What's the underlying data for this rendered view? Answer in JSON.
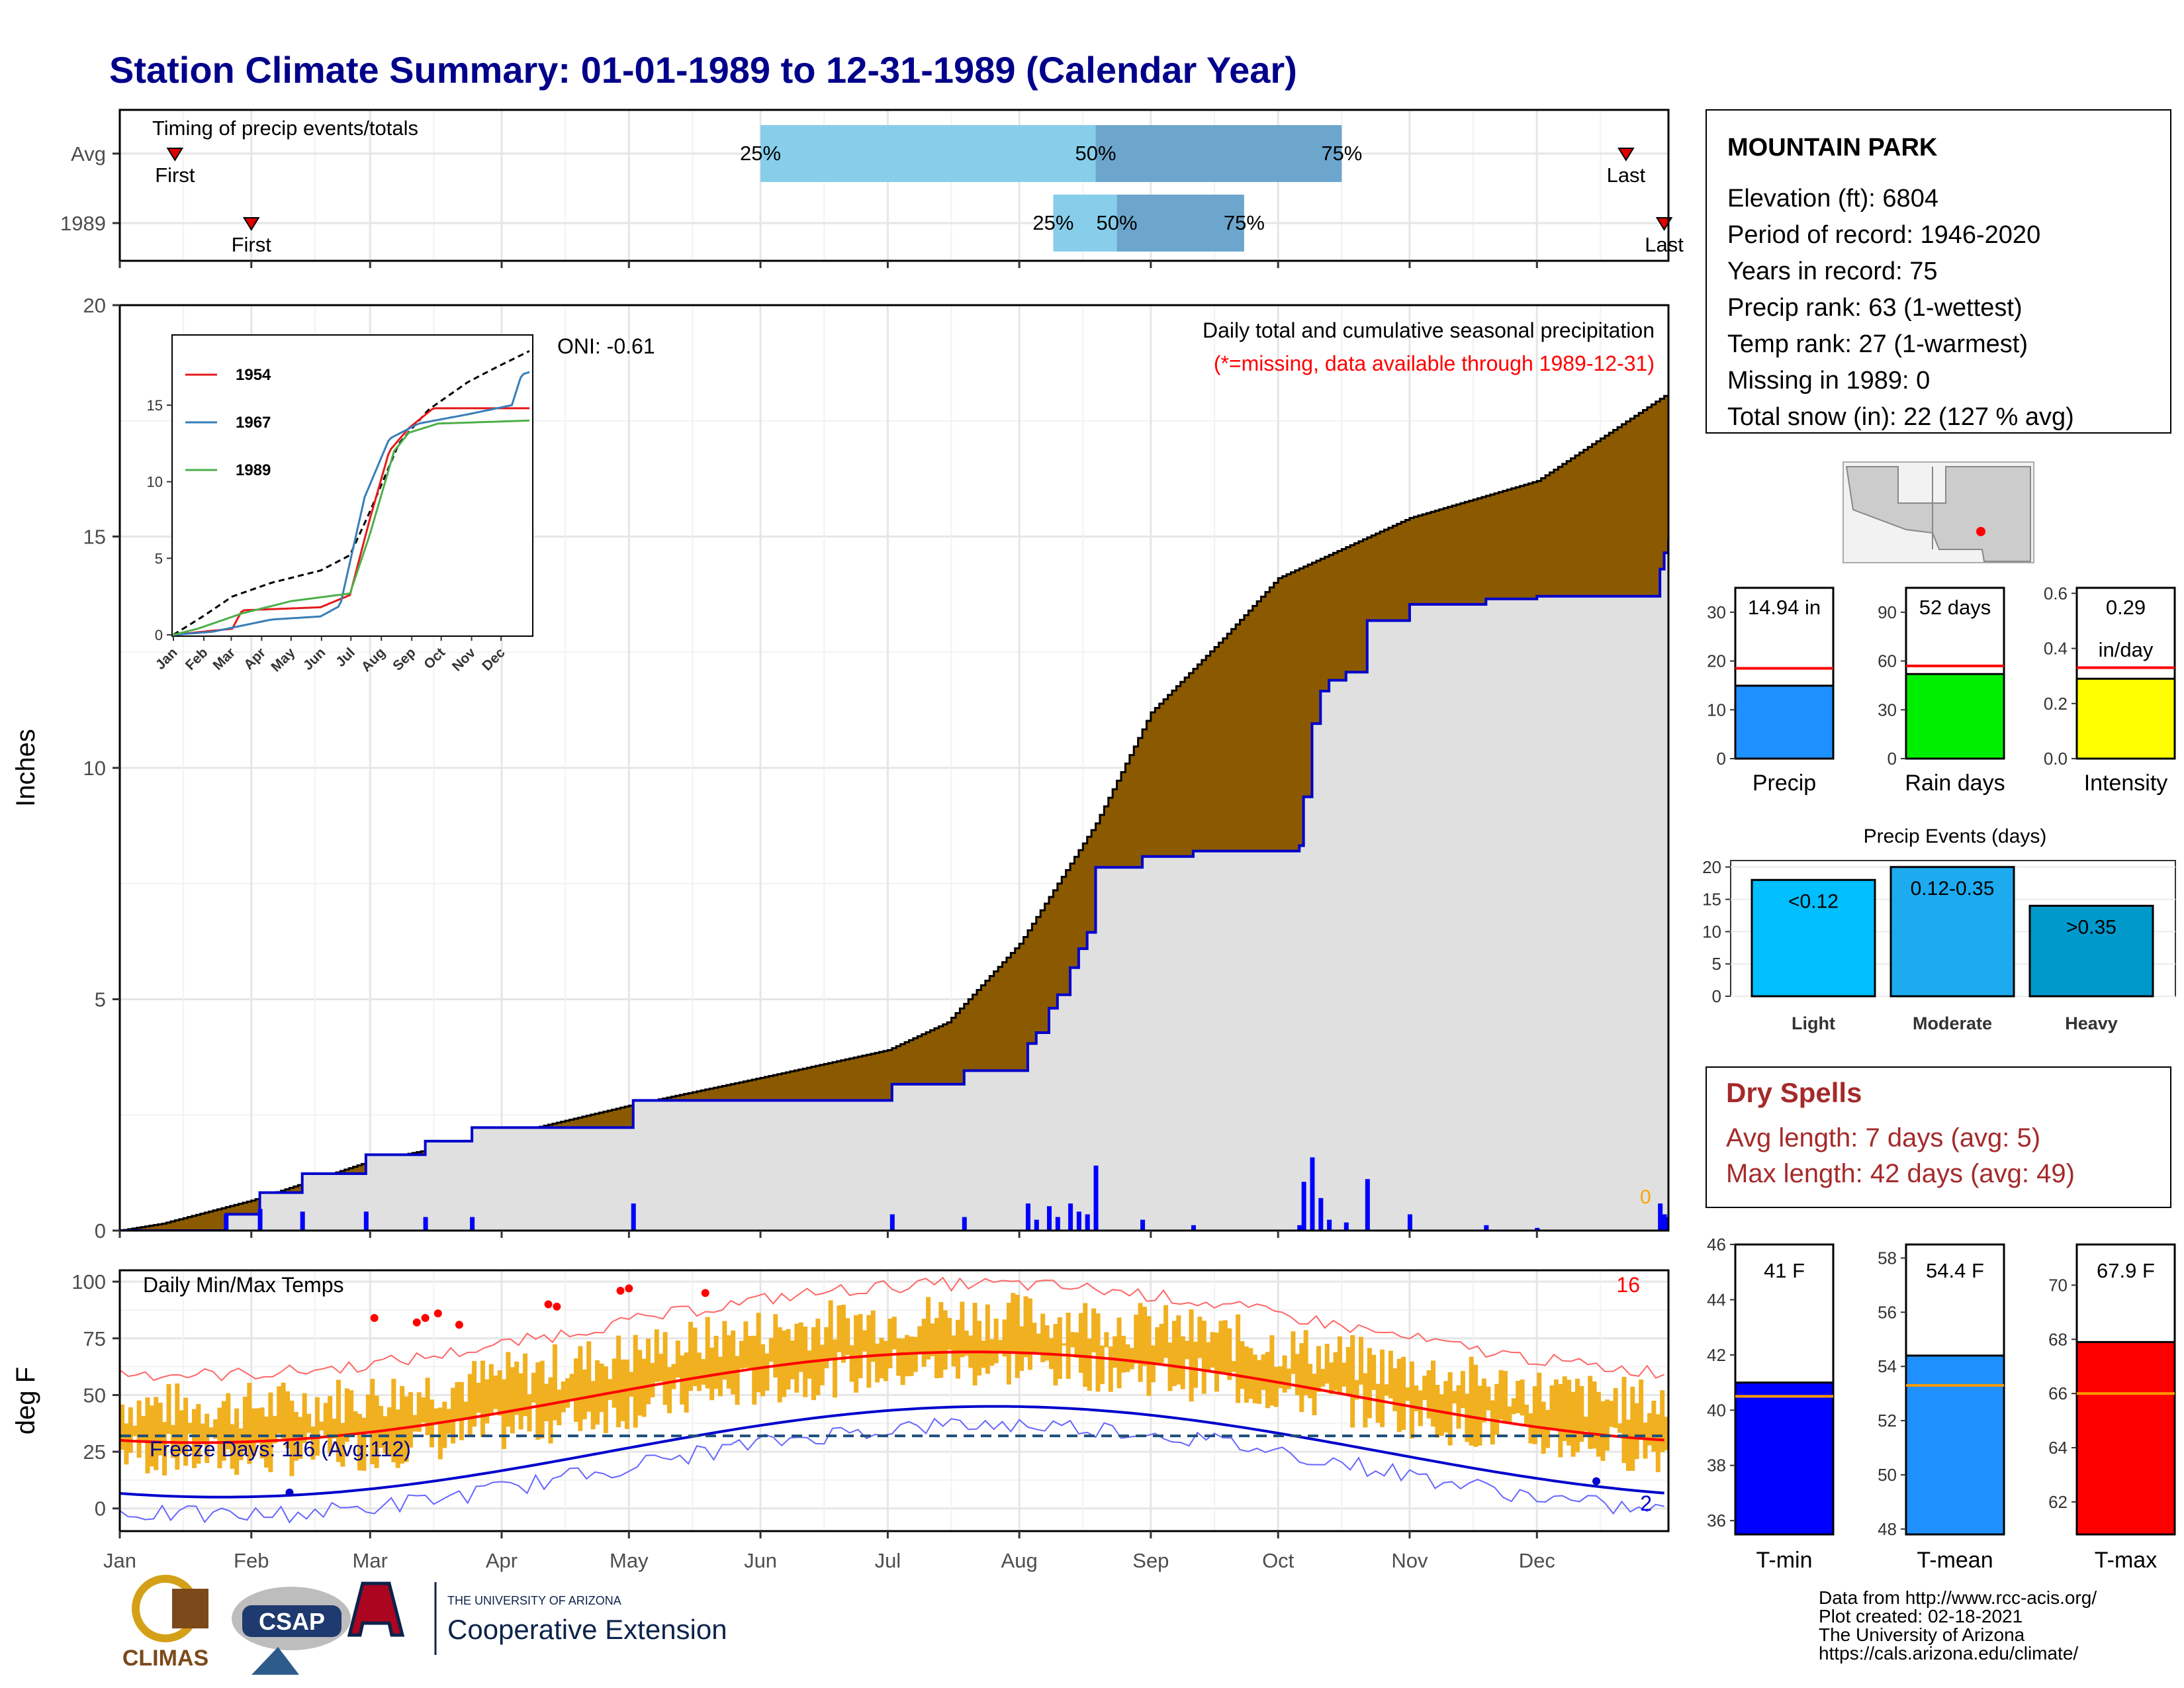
{
  "title": "Station Climate Summary: 01-01-1989 to 12-31-1989 (Calendar Year)",
  "months": [
    "Jan",
    "Feb",
    "Mar",
    "Apr",
    "May",
    "Jun",
    "Jul",
    "Aug",
    "Sep",
    "Oct",
    "Nov",
    "Dec"
  ],
  "timing": {
    "title": "Timing of precip events/totals",
    "rows": [
      {
        "label": "Avg",
        "first_day": 13,
        "last_day": 355,
        "p25": 151,
        "p50": 230,
        "p75": 288,
        "first_label": "First",
        "last_label": "Last",
        "p25_label": "25%",
        "p50_label": "50%",
        "p75_label": "75%"
      },
      {
        "label": "1989",
        "first_day": 31,
        "last_day": 364,
        "p25": 220,
        "p50": 235,
        "p75": 265,
        "first_label": "First",
        "last_label": "Last",
        "p25_label": "25%",
        "p50_label": "50%",
        "p75_label": "75%"
      }
    ]
  },
  "station": {
    "name": "MOUNTAIN PARK",
    "lines": [
      "Elevation (ft): 6804",
      "Period of record: 1946-2020",
      "Years in record: 75",
      "Precip rank: 63 (1-wettest)",
      "Temp rank: 27 (1-warmest)",
      "Missing in 1989: 0",
      "Total snow (in): 22 (127 % avg)"
    ]
  },
  "precip_panel": {
    "ylabel": "Inches",
    "yticks": [
      0,
      5,
      10,
      15,
      20
    ],
    "ylim": [
      0,
      20
    ],
    "title": "Daily total and cumulative seasonal precipitation",
    "missing_note": "(*=missing, data available through 1989-12-31)",
    "oni": "ONI: -0.61",
    "zero_count": "0",
    "colors": {
      "avg_fill": "#8b5a00",
      "obs_fill": "#e0e0e0",
      "obs_line": "#0000cc",
      "bars": "#0000ff"
    }
  },
  "inset": {
    "yticks": [
      0,
      5,
      10,
      15
    ],
    "xlabels": [
      "Jan",
      "Feb",
      "Mar",
      "Apr",
      "May",
      "Jun",
      "Jul",
      "Aug",
      "Sep",
      "Oct",
      "Nov",
      "Dec"
    ],
    "legend": [
      {
        "name": "1954",
        "color": "#e41a1c"
      },
      {
        "name": "1967",
        "color": "#377eb8"
      },
      {
        "name": "1989",
        "color": "#4daf4a"
      }
    ]
  },
  "temp_panel": {
    "ylabel": "deg F",
    "yticks": [
      0,
      25,
      50,
      75,
      100
    ],
    "ylim": [
      -10,
      105
    ],
    "title": "Daily Min/Max Temps",
    "freeze": "Freeze Days: 116 (Avg:112)",
    "hot_count": "16",
    "cold_count": "2",
    "freeze_line": 32
  },
  "bars_top": [
    {
      "label": "Precip",
      "value": 14.94,
      "value_text": "14.94 in",
      "avg": 18.5,
      "ylim": [
        0,
        35
      ],
      "yticks": [
        0,
        10,
        20,
        30
      ],
      "color": "#1e90ff"
    },
    {
      "label": "Rain days",
      "value": 52,
      "value_text": "52 days",
      "avg": 57,
      "ylim": [
        0,
        105
      ],
      "yticks": [
        0,
        30,
        60,
        90
      ],
      "color": "#00ee00"
    },
    {
      "label": "Intensity",
      "value": 0.29,
      "value_text": "0.29",
      "value_text2": "in/day",
      "avg": 0.33,
      "ylim": [
        0,
        0.62
      ],
      "yticks": [
        "0.0",
        "0.2",
        "0.4",
        "0.6"
      ],
      "color": "#ffff00"
    }
  ],
  "events": {
    "title": "Precip Events (days)",
    "yticks": [
      0,
      5,
      10,
      15,
      20
    ],
    "bars": [
      {
        "label": "Light",
        "value": 18,
        "text": "<0.12",
        "color": "#00bfff"
      },
      {
        "label": "Moderate",
        "value": 20,
        "text": "0.12-0.35",
        "color": "#1eaaef"
      },
      {
        "label": "Heavy",
        "value": 14,
        "text": ">0.35",
        "color": "#0099cc"
      }
    ]
  },
  "dry_spells": {
    "title": "Dry Spells",
    "avg_length": "Avg length: 7 days (avg: 5)",
    "max_length": "Max length: 42 days (avg: 49)"
  },
  "temp_bars": [
    {
      "label": "T-min",
      "value": 41.0,
      "value_text": "41 F",
      "avg": 40.5,
      "ylim": [
        35.5,
        46
      ],
      "yticks": [
        36,
        38,
        40,
        42,
        44,
        46
      ],
      "color": "#0000ff"
    },
    {
      "label": "T-mean",
      "value": 54.4,
      "value_text": "54.4 F",
      "avg": 53.3,
      "ylim": [
        47.8,
        58.5
      ],
      "yticks": [
        48,
        50,
        52,
        54,
        56,
        58
      ],
      "color": "#1e90ff"
    },
    {
      "label": "T-max",
      "value": 67.9,
      "value_text": "67.9 F",
      "avg": 66.0,
      "ylim": [
        60.8,
        71.5
      ],
      "yticks": [
        62,
        64,
        66,
        68,
        70
      ],
      "color": "#ff0000"
    }
  ],
  "footer": [
    "Data from http://www.rcc-acis.org/",
    "Plot created: 02-18-2021",
    "The University of Arizona",
    "https://cals.arizona.edu/climate/"
  ],
  "logos": {
    "climas": "CLIMAS",
    "csap": "CSAP",
    "ua_small": "THE UNIVERSITY OF ARIZONA",
    "ua_big": "Cooperative Extension"
  }
}
